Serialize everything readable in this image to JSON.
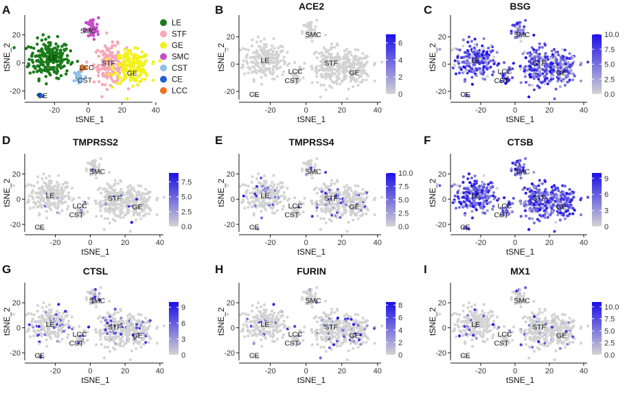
{
  "chart_data": [
    {
      "panel": "A",
      "type": "scatter",
      "title": "",
      "xlabel": "tSNE_1",
      "ylabel": "tSNE_2",
      "xlim": [
        -36,
        38
      ],
      "ylim": [
        -26,
        34
      ],
      "xticks": [
        "-20",
        "0",
        "20",
        "40"
      ],
      "xtick_values": [
        -20,
        0,
        20,
        40
      ],
      "yticks": [
        "-20",
        "0",
        "20"
      ],
      "ytick_values": [
        -20,
        0,
        20
      ],
      "legend": [
        {
          "name": "LE",
          "color": "#1a7a1a"
        },
        {
          "name": "STF",
          "color": "#f7a8b8"
        },
        {
          "name": "GE",
          "color": "#f2f21a"
        },
        {
          "name": "SMC",
          "color": "#c64fc6"
        },
        {
          "name": "CST",
          "color": "#8ec0ea"
        },
        {
          "name": "CE",
          "color": "#1f5fd9"
        },
        {
          "name": "LCC",
          "color": "#f07020"
        }
      ],
      "cluster_labels": [
        {
          "text": "SMC",
          "x": 0,
          "y": 23
        },
        {
          "text": "LE",
          "x": -21,
          "y": 4
        },
        {
          "text": "LCC",
          "x": -1,
          "y": -3
        },
        {
          "text": "STF",
          "x": 12,
          "y": 0
        },
        {
          "text": "GE",
          "x": 26,
          "y": -7
        },
        {
          "text": "CST",
          "x": -2,
          "y": -12
        },
        {
          "text": "CE",
          "x": -27,
          "y": -23
        }
      ]
    },
    {
      "panel": "B",
      "type": "scatter",
      "title": "ACE2",
      "xlabel": "tSNE_1",
      "ylabel": "tSNE_2",
      "colorbar": {
        "ticks": [
          "0",
          "2",
          "4",
          "6"
        ],
        "values": [
          0,
          2,
          4,
          6
        ],
        "max": 7
      },
      "expression_density": 0.0
    },
    {
      "panel": "C",
      "type": "scatter",
      "title": "BSG",
      "xlabel": "tSNE_1",
      "ylabel": "tSNE_2",
      "colorbar": {
        "ticks": [
          "0.0",
          "2.5",
          "5.0",
          "7.5",
          "10.0"
        ],
        "values": [
          0,
          2.5,
          5,
          7.5,
          10
        ],
        "max": 10
      },
      "expression_density": 0.85
    },
    {
      "panel": "D",
      "type": "scatter",
      "title": "TMPRSS2",
      "xlabel": "tSNE_1",
      "ylabel": "tSNE_2",
      "colorbar": {
        "ticks": [
          "0.0",
          "2.5",
          "5.0",
          "7.5"
        ],
        "values": [
          0,
          2.5,
          5,
          7.5
        ],
        "max": 9
      },
      "expression_density": 0.03
    },
    {
      "panel": "E",
      "type": "scatter",
      "title": "TMPRSS4",
      "xlabel": "tSNE_1",
      "ylabel": "tSNE_2",
      "colorbar": {
        "ticks": [
          "0.0",
          "2.5",
          "5.0",
          "7.5",
          "10.0"
        ],
        "values": [
          0,
          2.5,
          5,
          7.5,
          10
        ],
        "max": 10
      },
      "expression_density": 0.12
    },
    {
      "panel": "F",
      "type": "scatter",
      "title": "CTSB",
      "xlabel": "tSNE_1",
      "ylabel": "tSNE_2",
      "colorbar": {
        "ticks": [
          "0",
          "3",
          "6",
          "9"
        ],
        "values": [
          0,
          3,
          6,
          9
        ],
        "max": 10
      },
      "expression_density": 0.92
    },
    {
      "panel": "G",
      "type": "scatter",
      "title": "CTSL",
      "xlabel": "tSNE_1",
      "ylabel": "tSNE_2",
      "colorbar": {
        "ticks": [
          "0",
          "3",
          "6",
          "9"
        ],
        "values": [
          0,
          3,
          6,
          9
        ],
        "max": 10
      },
      "expression_density": 0.18
    },
    {
      "panel": "H",
      "type": "scatter",
      "title": "FURIN",
      "xlabel": "tSNE_1",
      "ylabel": "tSNE_2",
      "colorbar": {
        "ticks": [
          "0",
          "2",
          "4",
          "6",
          "8"
        ],
        "values": [
          0,
          2,
          4,
          6,
          8
        ],
        "max": 8.5
      },
      "expression_density": 0.09
    },
    {
      "panel": "I",
      "type": "scatter",
      "title": "MX1",
      "xlabel": "tSNE_1",
      "ylabel": "tSNE_2",
      "colorbar": {
        "ticks": [
          "0.0",
          "2.5",
          "5.0",
          "7.5",
          "10.0"
        ],
        "values": [
          0,
          2.5,
          5,
          7.5,
          10
        ],
        "max": 11
      },
      "expression_density": 0.05
    }
  ],
  "shared": {
    "xticks": [
      "-20",
      "0",
      "20",
      "40"
    ],
    "xtick_values": [
      -20,
      0,
      20,
      40
    ],
    "yticks": [
      "-20",
      "0",
      "20"
    ],
    "ytick_values": [
      -20,
      0,
      20
    ],
    "xlim": [
      -36,
      42
    ],
    "ylim": [
      -26,
      36
    ],
    "low_color": "#d3d3d3",
    "high_color": "#1c10e8",
    "cluster_labels": [
      {
        "text": "SMC",
        "x": 4,
        "y": 22
      },
      {
        "text": "LE",
        "x": -23,
        "y": 3
      },
      {
        "text": "LCC",
        "x": -6,
        "y": -5
      },
      {
        "text": "STF",
        "x": 14,
        "y": 1
      },
      {
        "text": "GE",
        "x": 27,
        "y": -6
      },
      {
        "text": "CST",
        "x": -8,
        "y": -12
      },
      {
        "text": "CE",
        "x": -29,
        "y": -22
      }
    ]
  }
}
